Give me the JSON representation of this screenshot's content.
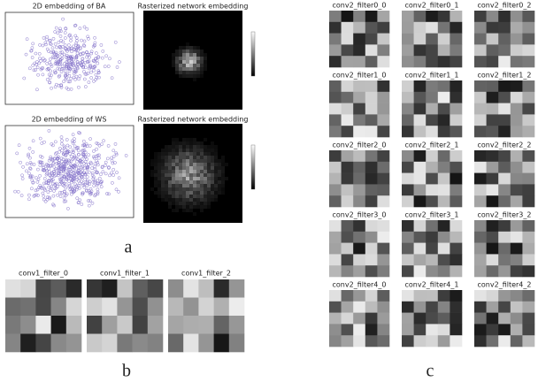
{
  "panel_a": {
    "rows": [
      {
        "scatter_title": "2D embedding of BA",
        "heatmap_title": "Rasterized network embedding"
      },
      {
        "scatter_title": "2D embedding of WS",
        "heatmap_title": "Rasterized network embedding"
      }
    ],
    "label": "a"
  },
  "panel_b": {
    "titles": [
      "conv1_filter_0",
      "conv1_filter_1",
      "conv1_filter_2"
    ],
    "label": "b"
  },
  "panel_c": {
    "titles": [
      [
        "conv2_filter0_0",
        "conv2_filter0_1",
        "conv2_filter0_2"
      ],
      [
        "conv2_filter1_0",
        "conv2_filter1_1",
        "conv2_filter1_2"
      ],
      [
        "conv2_filter2_0",
        "conv2_filter2_1",
        "conv2_filter2_2"
      ],
      [
        "conv2_filter3_0",
        "conv2_filter3_1",
        "conv2_filter3_2"
      ],
      [
        "conv2_filter4_0",
        "conv2_filter4_1",
        "conv2_filter4_2"
      ]
    ],
    "label": "c"
  }
}
